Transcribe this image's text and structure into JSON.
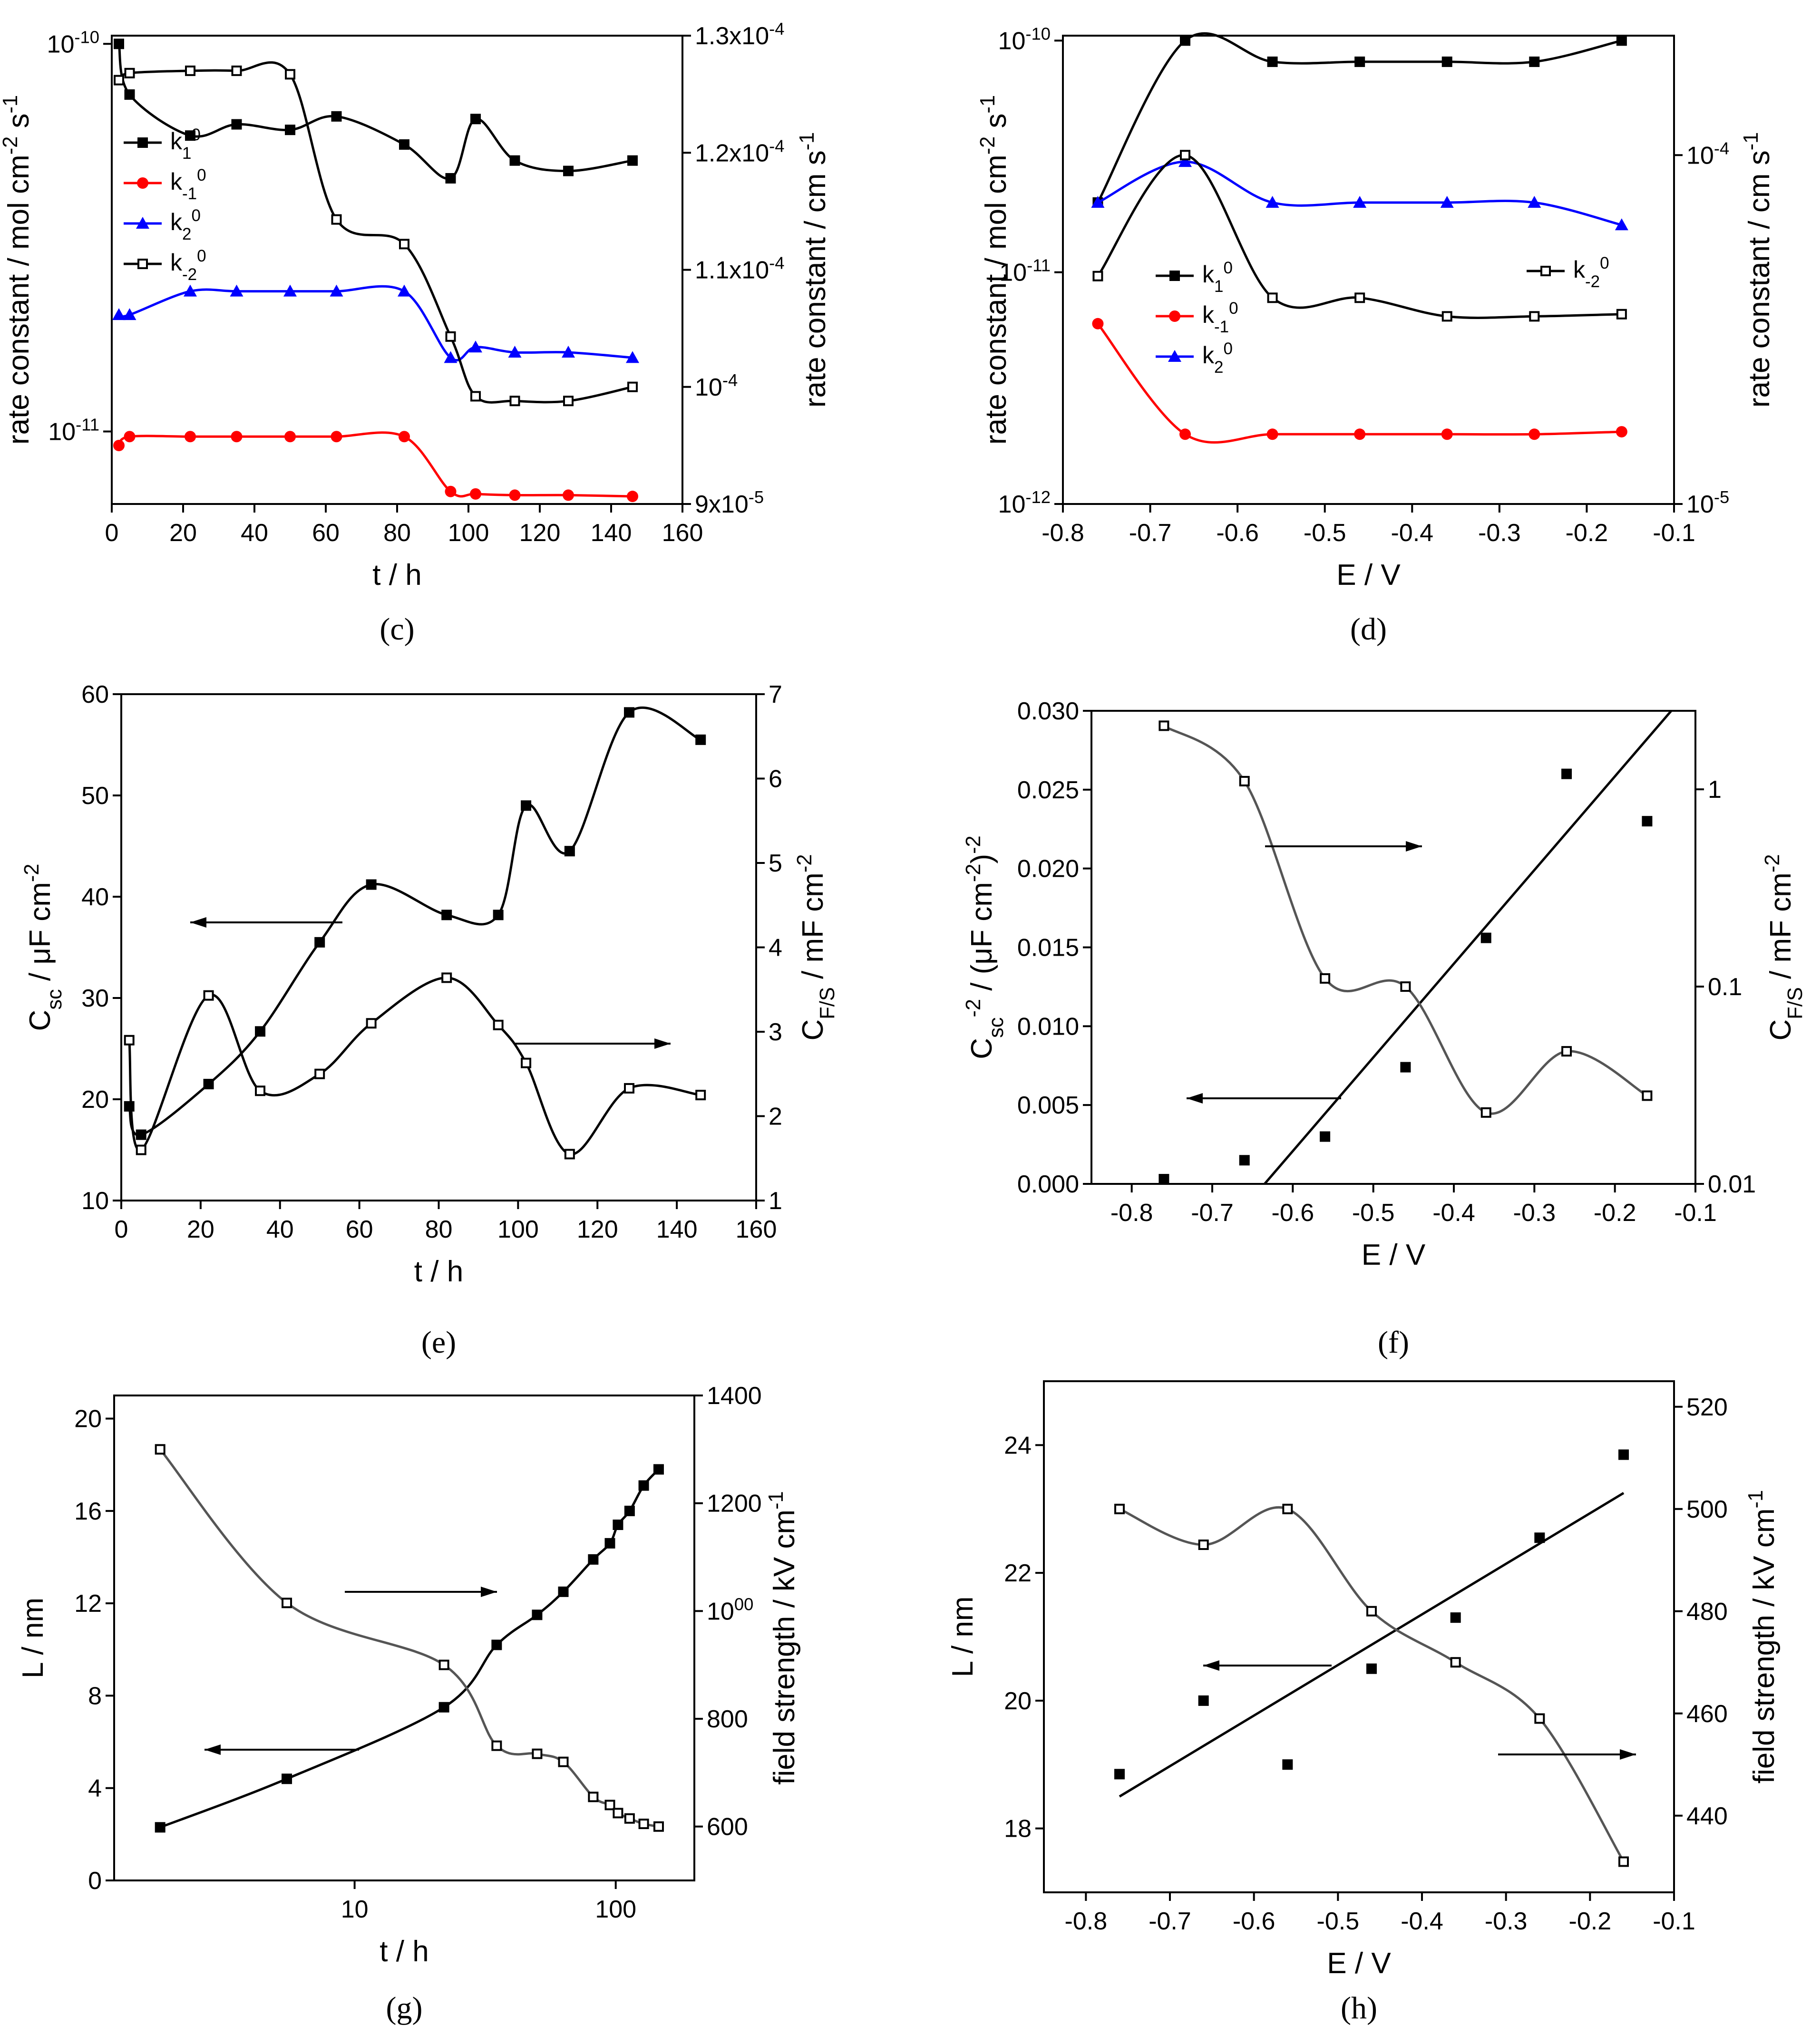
{
  "chart_data": [
    {
      "id": "c",
      "caption": "(c)",
      "type": "scatter",
      "title": "",
      "xlabel": "t / h",
      "ylabel_left": "rate constant / mol cm-2 s-1",
      "ylabel_right": "rate constant / cm s-1",
      "xlim": [
        0,
        160
      ],
      "x_ticks": [
        "0",
        "20",
        "40",
        "60",
        "80",
        "100",
        "120",
        "140",
        "160"
      ],
      "y_left_scale": "log",
      "y_left_ticks": [
        "10-11",
        "10-10"
      ],
      "y_right_ticks": [
        "9x10-5",
        "10-4",
        "1.1x10-4",
        "1.2x10-4",
        "1.3x10-4"
      ],
      "legend": [
        "k10",
        "k-10",
        "k20",
        "k-20"
      ],
      "series": [
        {
          "name": "k10",
          "axis": "left",
          "marker": "filled-square",
          "color": "#000000",
          "x": [
            2,
            5,
            22,
            35,
            50,
            63,
            82,
            95,
            102,
            113,
            128,
            146
          ],
          "y": [
            1e-10,
            7.4e-11,
            5.8e-11,
            6.2e-11,
            6e-11,
            6.5e-11,
            5.5e-11,
            4.5e-11,
            6.4e-11,
            5e-11,
            4.7e-11,
            5e-11
          ]
        },
        {
          "name": "k-10",
          "axis": "left",
          "marker": "filled-circle",
          "color": "#ff0000",
          "x": [
            2,
            5,
            22,
            35,
            50,
            63,
            82,
            95,
            102,
            113,
            128,
            146
          ],
          "y": [
            9.2e-12,
            9.7e-12,
            9.7e-12,
            9.7e-12,
            9.7e-12,
            9.7e-12,
            9.7e-12,
            7e-12,
            6.9e-12,
            6.85e-12,
            6.85e-12,
            6.8e-12
          ]
        },
        {
          "name": "k20",
          "axis": "left",
          "marker": "filled-triangle",
          "color": "#0000ff",
          "x": [
            2,
            5,
            22,
            35,
            50,
            63,
            82,
            95,
            102,
            113,
            128,
            146
          ],
          "y": [
            2e-11,
            2e-11,
            2.3e-11,
            2.3e-11,
            2.3e-11,
            2.3e-11,
            2.3e-11,
            1.55e-11,
            1.65e-11,
            1.6e-11,
            1.6e-11,
            1.55e-11
          ]
        },
        {
          "name": "k-20",
          "axis": "right",
          "marker": "open-square",
          "color": "#000000",
          "x": [
            2,
            5,
            22,
            35,
            50,
            63,
            82,
            95,
            102,
            113,
            128,
            146
          ],
          "y": [
            0.0001262,
            0.0001268,
            0.000127,
            0.000127,
            0.0001267,
            0.0001143,
            0.0001122,
            0.0001043,
            9.92e-05,
            9.88e-05,
            9.88e-05,
            0.0001
          ]
        }
      ]
    },
    {
      "id": "d",
      "caption": "(d)",
      "type": "scatter",
      "title": "",
      "xlabel": "E / V",
      "ylabel_left": "rate constant / mol cm-2 s-1",
      "ylabel_right": "rate constant / cm s-1",
      "xlim": [
        -0.8,
        -0.1
      ],
      "x_ticks": [
        "-0.8",
        "-0.7",
        "-0.6",
        "-0.5",
        "-0.4",
        "-0.3",
        "-0.2",
        "-0.1"
      ],
      "y_left_scale": "log",
      "y_left_ticks": [
        "10-12",
        "10-11",
        "10-10"
      ],
      "y_right_scale": "log",
      "y_right_ticks": [
        "10-5",
        "10-4"
      ],
      "legend": [
        "k10",
        "k-10",
        "k20",
        "k-20"
      ],
      "series": [
        {
          "name": "k10",
          "axis": "left",
          "marker": "filled-square",
          "color": "#000000",
          "x": [
            -0.76,
            -0.66,
            -0.56,
            -0.46,
            -0.36,
            -0.26,
            -0.16
          ],
          "y": [
            2e-11,
            1e-10,
            8.1e-11,
            8.1e-11,
            8.1e-11,
            8.1e-11,
            1e-10
          ]
        },
        {
          "name": "k-10",
          "axis": "left",
          "marker": "filled-circle",
          "color": "#ff0000",
          "x": [
            -0.76,
            -0.66,
            -0.56,
            -0.46,
            -0.36,
            -0.26,
            -0.16
          ],
          "y": [
            6e-12,
            2e-12,
            2e-12,
            2e-12,
            2e-12,
            2e-12,
            2.05e-12
          ]
        },
        {
          "name": "k20",
          "axis": "left",
          "marker": "filled-triangle",
          "color": "#0000ff",
          "x": [
            -0.76,
            -0.66,
            -0.56,
            -0.46,
            -0.36,
            -0.26,
            -0.16
          ],
          "y": [
            2e-11,
            3e-11,
            2e-11,
            2e-11,
            2e-11,
            2e-11,
            1.6e-11
          ]
        },
        {
          "name": "k-20",
          "axis": "right",
          "marker": "open-square",
          "color": "#000000",
          "x": [
            -0.76,
            -0.66,
            -0.56,
            -0.46,
            -0.36,
            -0.26,
            -0.16
          ],
          "y": [
            4.5e-05,
            0.0001,
            3.9e-05,
            3.9e-05,
            3.45e-05,
            3.45e-05,
            3.5e-05
          ]
        }
      ]
    },
    {
      "id": "e",
      "caption": "(e)",
      "type": "scatter",
      "title": "",
      "xlabel": "t / h",
      "ylabel_left": "Csc / μF cm-2",
      "ylabel_right": "CF/S / mF cm-2",
      "xlim": [
        0,
        160
      ],
      "ylim_left": [
        10,
        60
      ],
      "ylim_right": [
        1,
        7
      ],
      "x_ticks": [
        "0",
        "20",
        "40",
        "60",
        "80",
        "100",
        "120",
        "140",
        "160"
      ],
      "y_left_ticks": [
        "10",
        "20",
        "30",
        "40",
        "50",
        "60"
      ],
      "y_right_ticks": [
        "1",
        "2",
        "3",
        "4",
        "5",
        "6",
        "7"
      ],
      "series": [
        {
          "name": "Csc",
          "axis": "left",
          "marker": "filled-square",
          "x": [
            2,
            5,
            22,
            35,
            50,
            63,
            82,
            95,
            102,
            113,
            128,
            146
          ],
          "y": [
            19.3,
            16.5,
            21.5,
            26.7,
            35.5,
            41.2,
            38.2,
            38.2,
            49.0,
            44.5,
            58.2,
            55.5
          ]
        },
        {
          "name": "CF/S",
          "axis": "right",
          "marker": "open-square",
          "x": [
            2,
            5,
            22,
            35,
            50,
            63,
            82,
            95,
            102,
            113,
            128,
            146
          ],
          "y": [
            2.9,
            1.6,
            3.43,
            2.3,
            2.5,
            3.1,
            3.64,
            3.08,
            2.63,
            1.55,
            2.33,
            2.25
          ]
        }
      ]
    },
    {
      "id": "f",
      "caption": "(f)",
      "type": "scatter",
      "title": "",
      "xlabel": "E / V",
      "ylabel_left": "Csc-2 / (μF cm-2)-2",
      "ylabel_right": "CF/S / mF cm-2",
      "xlim": [
        -0.85,
        -0.1
      ],
      "ylim_left": [
        0,
        0.03
      ],
      "y_right_scale": "log",
      "ylim_right": [
        0.01,
        2.5
      ],
      "x_ticks": [
        "-0.8",
        "-0.7",
        "-0.6",
        "-0.5",
        "-0.4",
        "-0.3",
        "-0.2",
        "-0.1"
      ],
      "y_left_ticks": [
        "0.000",
        "0.005",
        "0.010",
        "0.015",
        "0.020",
        "0.025",
        "0.030"
      ],
      "y_right_ticks": [
        "0.01",
        "0.1",
        "1"
      ],
      "series": [
        {
          "name": "Csc-2",
          "axis": "left",
          "marker": "filled-square",
          "x": [
            -0.76,
            -0.66,
            -0.56,
            -0.46,
            -0.36,
            -0.26,
            -0.16
          ],
          "y": [
            0.0003,
            0.0015,
            0.003,
            0.0074,
            0.0156,
            0.026,
            0.023
          ]
        },
        {
          "name": "CF/S",
          "axis": "right",
          "marker": "open-square",
          "x": [
            -0.76,
            -0.66,
            -0.56,
            -0.46,
            -0.36,
            -0.26,
            -0.16
          ],
          "y": [
            2.1,
            1.1,
            0.11,
            0.1,
            0.023,
            0.047,
            0.028
          ]
        }
      ]
    },
    {
      "id": "g",
      "caption": "(g)",
      "type": "scatter",
      "title": "",
      "xlabel": "t / h",
      "ylabel_left": "L / nm",
      "ylabel_right": "field strength / kV cm-1",
      "x_scale": "log",
      "xlim": [
        1.2,
        200
      ],
      "ylim_left": [
        0,
        21
      ],
      "ylim_right": [
        500,
        1400
      ],
      "x_ticks": [
        "10",
        "100"
      ],
      "y_left_ticks": [
        "0",
        "4",
        "8",
        "12",
        "16",
        "20"
      ],
      "y_right_ticks": [
        "600",
        "800",
        "1000",
        "1200",
        "1400"
      ],
      "series": [
        {
          "name": "L",
          "axis": "left",
          "marker": "filled-square",
          "x": [
            1.8,
            5.5,
            22,
            35,
            50,
            63,
            82,
            95,
            102,
            113,
            128,
            146
          ],
          "y": [
            2.3,
            4.4,
            7.5,
            10.2,
            11.5,
            12.5,
            13.9,
            14.6,
            15.4,
            16.0,
            17.1,
            17.8
          ]
        },
        {
          "name": "field strength",
          "axis": "right",
          "marker": "open-square",
          "x": [
            1.8,
            5.5,
            22,
            35,
            50,
            63,
            82,
            95,
            102,
            113,
            128,
            146
          ],
          "y": [
            1300,
            1015,
            900,
            750,
            735,
            720,
            655,
            640,
            625,
            615,
            605,
            600
          ]
        }
      ]
    },
    {
      "id": "h",
      "caption": "(h)",
      "type": "scatter",
      "title": "",
      "xlabel": "E / V",
      "ylabel_left": "L / nm",
      "ylabel_right": "field strength / kV cm-1",
      "xlim": [
        -0.85,
        -0.1
      ],
      "ylim_left": [
        17,
        25
      ],
      "ylim_right": [
        425,
        525
      ],
      "x_ticks": [
        "-0.8",
        "-0.7",
        "-0.6",
        "-0.5",
        "-0.4",
        "-0.3",
        "-0.2",
        "-0.1"
      ],
      "y_left_ticks": [
        "18",
        "20",
        "22",
        "24"
      ],
      "y_right_ticks": [
        "440",
        "460",
        "480",
        "500",
        "520"
      ],
      "series": [
        {
          "name": "L",
          "axis": "left",
          "marker": "filled-square",
          "x": [
            -0.76,
            -0.66,
            -0.56,
            -0.46,
            -0.36,
            -0.26,
            -0.16
          ],
          "y": [
            18.85,
            20.0,
            19.0,
            20.5,
            21.3,
            22.55,
            23.85
          ]
        },
        {
          "name": "field strength",
          "axis": "right",
          "marker": "open-square",
          "x": [
            -0.76,
            -0.66,
            -0.56,
            -0.46,
            -0.36,
            -0.26,
            -0.16
          ],
          "y": [
            500,
            493,
            500,
            480,
            470,
            459,
            431
          ]
        }
      ]
    }
  ]
}
